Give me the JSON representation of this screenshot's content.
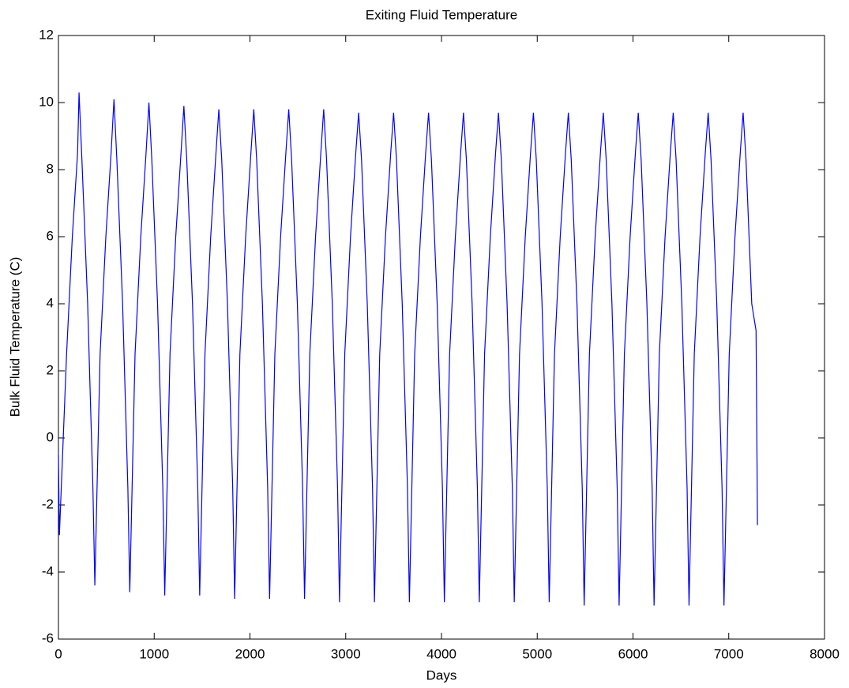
{
  "chart_data": {
    "type": "line",
    "title": "Exiting Fluid Temperature",
    "x_label": "Days",
    "y_label": "Bulk Fluid Temperature (C)",
    "xlim": [
      0,
      8000
    ],
    "xticks": [
      0,
      1000,
      2000,
      3000,
      4000,
      5000,
      6000,
      7000,
      8000
    ],
    "ylim": [
      -6,
      12
    ],
    "yticks": [
      -6,
      -4,
      -2,
      0,
      2,
      4,
      6,
      8,
      10,
      12
    ],
    "series": [
      {
        "color": "#0000ff",
        "x": [
          0,
          10,
          85,
          145,
          200,
          215,
          245,
          305,
          360,
          380,
          435,
          495,
          550,
          580,
          610,
          670,
          725,
          745,
          800,
          860,
          915,
          945,
          975,
          1035,
          1090,
          1110,
          1165,
          1225,
          1280,
          1310,
          1340,
          1400,
          1455,
          1475,
          1530,
          1590,
          1645,
          1675,
          1705,
          1765,
          1820,
          1840,
          1895,
          1955,
          2010,
          2040,
          2070,
          2130,
          2185,
          2205,
          2260,
          2320,
          2375,
          2405,
          2435,
          2495,
          2550,
          2570,
          2625,
          2685,
          2740,
          2770,
          2800,
          2860,
          2915,
          2935,
          2990,
          3050,
          3105,
          3135,
          3165,
          3225,
          3280,
          3300,
          3355,
          3415,
          3470,
          3500,
          3530,
          3590,
          3645,
          3665,
          3720,
          3780,
          3835,
          3865,
          3895,
          3955,
          4010,
          4030,
          4085,
          4145,
          4200,
          4230,
          4260,
          4320,
          4375,
          4395,
          4450,
          4510,
          4565,
          4595,
          4625,
          4685,
          4740,
          4760,
          4815,
          4875,
          4930,
          4960,
          4990,
          5050,
          5105,
          5125,
          5180,
          5240,
          5295,
          5325,
          5355,
          5415,
          5470,
          5490,
          5545,
          5605,
          5660,
          5690,
          5720,
          5780,
          5835,
          5855,
          5910,
          5970,
          6025,
          6055,
          6085,
          6145,
          6200,
          6220,
          6275,
          6335,
          6390,
          6420,
          6450,
          6510,
          6565,
          6585,
          6640,
          6700,
          6755,
          6785,
          6815,
          6875,
          6930,
          6950,
          7005,
          7065,
          7120,
          7150,
          7180,
          7240,
          7285,
          7300
        ],
        "values": [
          -0.5,
          -2.9,
          2.5,
          6,
          8.5,
          10.3,
          8.3,
          4,
          -1.5,
          -4.4,
          2.5,
          6,
          8.5,
          10.1,
          8.3,
          4,
          -1.5,
          -4.6,
          2.5,
          6,
          8.5,
          10.0,
          8.3,
          4,
          -1.5,
          -4.7,
          2.5,
          6,
          8.5,
          9.9,
          8.3,
          4,
          -1.5,
          -4.7,
          2.5,
          6,
          8.5,
          9.8,
          8.3,
          4,
          -1.5,
          -4.8,
          2.5,
          6,
          8.5,
          9.8,
          8.3,
          4,
          -1.5,
          -4.8,
          2.5,
          6,
          8.5,
          9.8,
          8.3,
          4,
          -1.5,
          -4.8,
          2.5,
          6,
          8.5,
          9.8,
          8.3,
          4,
          -1.5,
          -4.9,
          2.5,
          6,
          8.5,
          9.7,
          8.3,
          4,
          -1.5,
          -4.9,
          2.5,
          6,
          8.5,
          9.7,
          8.3,
          4,
          -1.5,
          -4.9,
          2.5,
          6,
          8.5,
          9.7,
          8.3,
          4,
          -1.5,
          -4.9,
          2.5,
          6,
          8.5,
          9.7,
          8.3,
          4,
          -1.5,
          -4.9,
          2.5,
          6,
          8.5,
          9.7,
          8.3,
          4,
          -1.5,
          -4.9,
          2.5,
          6,
          8.5,
          9.7,
          8.3,
          4,
          -1.5,
          -4.9,
          2.5,
          6,
          8.5,
          9.7,
          8.3,
          4,
          -1.5,
          -5.0,
          2.5,
          6,
          8.5,
          9.7,
          8.3,
          4,
          -1.5,
          -5.0,
          2.5,
          6,
          8.5,
          9.7,
          8.3,
          4,
          -1.5,
          -5.0,
          2.5,
          6,
          8.5,
          9.7,
          8.3,
          4,
          -1.5,
          -5.0,
          2.5,
          6,
          8.5,
          9.7,
          8.3,
          4,
          -1.5,
          -5.0,
          2.5,
          6,
          8.5,
          9.7,
          8.3,
          4,
          3.2,
          -2.6
        ]
      }
    ]
  }
}
